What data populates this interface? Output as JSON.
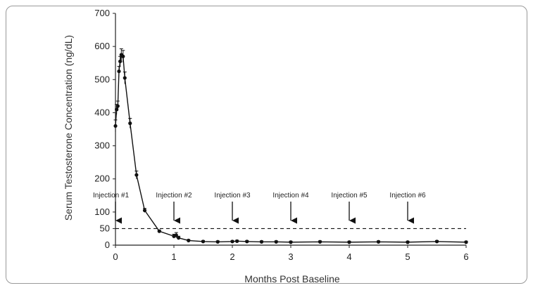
{
  "chart_data": {
    "type": "line",
    "title": "",
    "xlabel": "Months Post Baseline",
    "ylabel": "Serum Testosterone Concentration (ng/dL)",
    "xlim": [
      0,
      6
    ],
    "ylim": [
      0,
      700
    ],
    "x_ticks": [
      "0",
      "1",
      "2",
      "3",
      "4",
      "5",
      "6"
    ],
    "y_ticks": [
      "0",
      "50",
      "100",
      "200",
      "300",
      "400",
      "500",
      "600",
      "700"
    ],
    "grid": false,
    "legend": "none",
    "series": [
      {
        "color": "#111111",
        "points": [
          {
            "x": 0.0,
            "y": 360,
            "err": 18
          },
          {
            "x": 0.02,
            "y": 410,
            "err": 15
          },
          {
            "x": 0.04,
            "y": 420,
            "err": 15
          },
          {
            "x": 0.06,
            "y": 525,
            "err": 15
          },
          {
            "x": 0.08,
            "y": 555,
            "err": 15
          },
          {
            "x": 0.1,
            "y": 575,
            "err": 18
          },
          {
            "x": 0.13,
            "y": 570,
            "err": 18
          },
          {
            "x": 0.16,
            "y": 505,
            "err": 18
          },
          {
            "x": 0.25,
            "y": 368,
            "err": 15
          },
          {
            "x": 0.36,
            "y": 212,
            "err": 12
          },
          {
            "x": 0.5,
            "y": 105,
            "err": 6
          },
          {
            "x": 0.75,
            "y": 42,
            "err": 4
          },
          {
            "x": 1.0,
            "y": 27,
            "err": 6
          },
          {
            "x": 1.04,
            "y": 30,
            "err": 8
          },
          {
            "x": 1.08,
            "y": 22,
            "err": 5
          },
          {
            "x": 1.25,
            "y": 14,
            "err": 3
          },
          {
            "x": 1.5,
            "y": 11,
            "err": 3
          },
          {
            "x": 1.75,
            "y": 10,
            "err": 3
          },
          {
            "x": 2.0,
            "y": 11,
            "err": 3
          },
          {
            "x": 2.08,
            "y": 12,
            "err": 3
          },
          {
            "x": 2.25,
            "y": 11,
            "err": 3
          },
          {
            "x": 2.5,
            "y": 10,
            "err": 3
          },
          {
            "x": 2.75,
            "y": 10,
            "err": 3
          },
          {
            "x": 3.0,
            "y": 9,
            "err": 3
          },
          {
            "x": 3.5,
            "y": 10,
            "err": 3
          },
          {
            "x": 4.0,
            "y": 9,
            "err": 3
          },
          {
            "x": 4.5,
            "y": 10,
            "err": 3
          },
          {
            "x": 5.0,
            "y": 9,
            "err": 3
          },
          {
            "x": 5.5,
            "y": 11,
            "err": 3
          },
          {
            "x": 6.0,
            "y": 9,
            "err": 3
          }
        ]
      }
    ],
    "reference_line": {
      "y": 50,
      "style": "dashed"
    },
    "annotations": [
      {
        "label": "Injection #1",
        "x": 0
      },
      {
        "label": "Injection #2",
        "x": 1
      },
      {
        "label": "Injection #3",
        "x": 2
      },
      {
        "label": "Injection #4",
        "x": 3
      },
      {
        "label": "Injection #5",
        "x": 4
      },
      {
        "label": "Injection #6",
        "x": 5
      }
    ]
  }
}
